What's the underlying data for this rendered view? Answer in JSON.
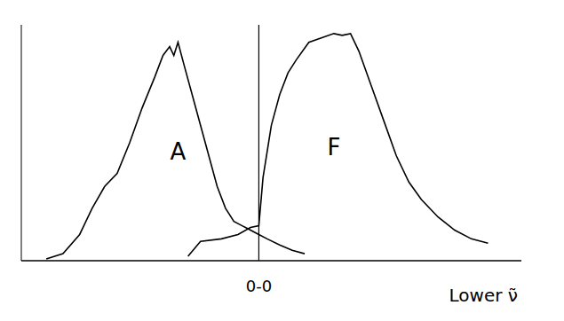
{
  "chart_data": {
    "type": "line",
    "xlabel": "Lower ν̃",
    "xlim": [
      0,
      600
    ],
    "ylim": [
      0,
      270
    ],
    "tick_labels": false,
    "grid": false,
    "color": "#000000",
    "series": [
      {
        "name": "A",
        "x": [
          30,
          50,
          70,
          85,
          100,
          115,
          130,
          145,
          160,
          170,
          178,
          183,
          188,
          195,
          205,
          215,
          225,
          235,
          245,
          255,
          265,
          275,
          285,
          295,
          310,
          325,
          340
        ],
        "values": [
          2,
          8,
          30,
          60,
          85,
          100,
          135,
          175,
          210,
          235,
          245,
          235,
          250,
          225,
          190,
          155,
          120,
          85,
          60,
          45,
          40,
          35,
          30,
          25,
          18,
          12,
          8
        ]
      },
      {
        "name": "F",
        "x": [
          200,
          215,
          240,
          260,
          275,
          285,
          290,
          300,
          310,
          320,
          330,
          345,
          360,
          375,
          385,
          395,
          405,
          420,
          435,
          450,
          465,
          480,
          500,
          520,
          540,
          560
        ],
        "values": [
          5,
          22,
          25,
          30,
          38,
          40,
          95,
          155,
          190,
          215,
          230,
          250,
          255,
          260,
          258,
          260,
          240,
          200,
          160,
          120,
          90,
          70,
          50,
          35,
          25,
          20
        ]
      }
    ],
    "annotations": [
      {
        "text": "0-0",
        "x": 285
      }
    ]
  }
}
